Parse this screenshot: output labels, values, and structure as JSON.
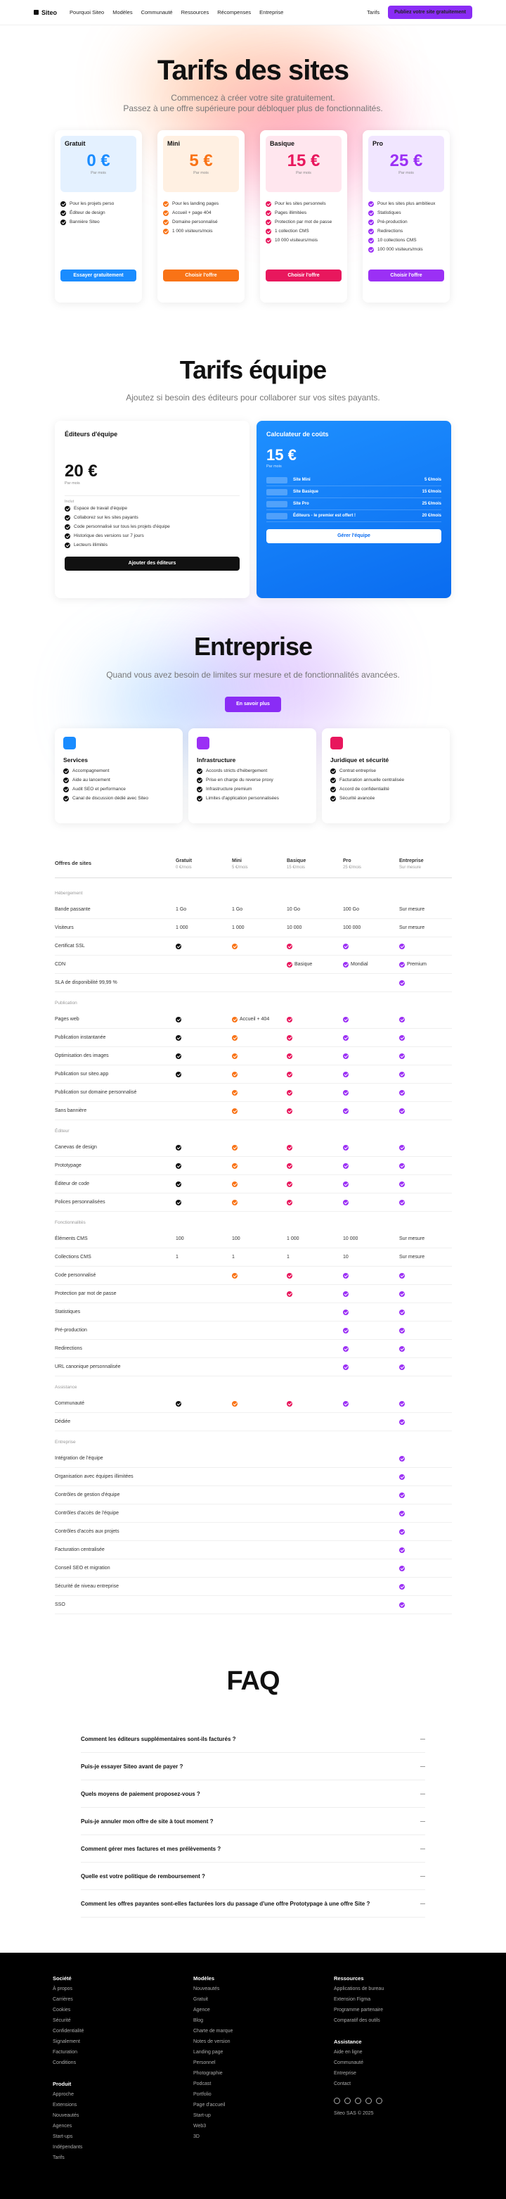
{
  "nav": {
    "logo": "Siteo",
    "links": [
      "Pourquoi Siteo",
      "Modèles",
      "Communauté",
      "Ressources",
      "Récompenses",
      "Entreprise"
    ],
    "pricing": "Tarifs",
    "cta": "Publiez votre site gratuitement"
  },
  "hero": {
    "title": "Tarifs des sites",
    "subtitle": [
      "Commencez à créer votre site gratuitement.",
      "Passez à une offre supérieure pour débloquer plus de fonctionnalités."
    ]
  },
  "plans": [
    {
      "name": "Gratuit",
      "price": "0 €",
      "period": "Par mois",
      "color": "#1a8cff",
      "tint": "#e4f1ff",
      "features": [
        "Pour les projets perso",
        "Éditeur de design",
        "Bannière Siteo"
      ],
      "button": "Essayer gratuitement"
    },
    {
      "name": "Mini",
      "price": "5 €",
      "period": "Par mois",
      "color": "#f97316",
      "tint": "#fff0e2",
      "features": [
        "Pour les landing pages",
        "Accueil + page 404",
        "Domaine personnalisé",
        "1 000 visiteurs/mois"
      ],
      "button": "Choisir l'offre"
    },
    {
      "name": "Basique",
      "price": "15 €",
      "period": "Par mois",
      "color": "#e8175d",
      "tint": "#ffe6ee",
      "features": [
        "Pour les sites personnels",
        "Pages illimitées",
        "Protection par mot de passe",
        "1 collection CMS",
        "10 000 visiteurs/mois"
      ],
      "button": "Choisir l'offre"
    },
    {
      "name": "Pro",
      "price": "25 €",
      "period": "Par mois",
      "color": "#9b30f5",
      "tint": "#f1e6ff",
      "features": [
        "Pour les sites plus ambitieux",
        "Statistiques",
        "Pré-production",
        "Redirections",
        "10 collections CMS",
        "100 000 visiteurs/mois"
      ],
      "button": "Choisir l'offre"
    }
  ],
  "team": {
    "title": "Tarifs équipe",
    "subtitle": "Ajoutez si besoin des éditeurs pour collaborer sur vos sites payants.",
    "editors": {
      "title": "Éditeurs d'équipe",
      "price": "20 €",
      "period": "Par mois",
      "includes": "Inclut",
      "features": [
        "Espace de travail d'équipe",
        "Collaborez sur les sites payants",
        "Code personnalisé sur tous les projets d'équipe",
        "Historique des versions sur 7 jours",
        "Lecteurs illimités"
      ],
      "button": "Ajouter des éditeurs"
    },
    "calculator": {
      "title": "Calculateur de coûts",
      "price": "15 €",
      "period": "Par mois",
      "rows": [
        {
          "label": "Site Mini",
          "price": "5 €/mois"
        },
        {
          "label": "Site Basique",
          "price": "15 €/mois"
        },
        {
          "label": "Site Pro",
          "price": "25 €/mois"
        },
        {
          "label": "Éditeurs - le premier est offert !",
          "price": "20 €/mois"
        }
      ],
      "button": "Gérer l'équipe"
    }
  },
  "enterprise": {
    "title": "Entreprise",
    "subtitle": "Quand vous avez besoin de limites sur mesure et de fonctionnalités avancées.",
    "button": "En savoir plus",
    "cards": [
      {
        "title": "Services",
        "color": "#1a8cff",
        "items": [
          "Accompagnement",
          "Aide au lancement",
          "Audit SEO et performance",
          "Canal de discussion dédié avec Siteo"
        ]
      },
      {
        "title": "Infrastructure",
        "color": "#9b30f5",
        "items": [
          "Accords stricts d'hébergement",
          "Prise en charge du reverse proxy",
          "Infrastructure premium",
          "Limites d'application personnalisées"
        ]
      },
      {
        "title": "Juridique et sécurité",
        "color": "#e8175d",
        "items": [
          "Contrat entreprise",
          "Facturation annuelle centralisée",
          "Accord de confidentialité",
          "Sécurité avancée"
        ]
      }
    ]
  },
  "comparison": {
    "heading": "Offres de sites",
    "columns": [
      {
        "name": "Gratuit",
        "price": "0 €/mois"
      },
      {
        "name": "Mini",
        "price": "5 €/mois"
      },
      {
        "name": "Basique",
        "price": "15 €/mois"
      },
      {
        "name": "Pro",
        "price": "25 €/mois"
      },
      {
        "name": "Entreprise",
        "price": "Sur mesure"
      }
    ],
    "check_colors": [
      "#111111",
      "#f97316",
      "#e8175d",
      "#9b30f5",
      "#9b30f5"
    ],
    "groups": [
      {
        "title": "Hébergement",
        "rows": [
          {
            "label": "Bande passante",
            "cells": [
              "1 Go",
              "1 Go",
              "10 Go",
              "100 Go",
              "Sur mesure"
            ]
          },
          {
            "label": "Visiteurs",
            "cells": [
              "1 000",
              "1 000",
              "10 000",
              "100 000",
              "Sur mesure"
            ]
          },
          {
            "label": "Certificat SSL",
            "cells": [
              true,
              true,
              true,
              true,
              true
            ]
          },
          {
            "label": "CDN",
            "cells": [
              null,
              null,
              "Basique",
              "Mondial",
              "Premium"
            ]
          },
          {
            "label": "SLA de disponibilité 99,99 %",
            "cells": [
              null,
              null,
              null,
              null,
              true
            ]
          }
        ]
      },
      {
        "title": "Publication",
        "rows": [
          {
            "label": "Pages web",
            "cells": [
              true,
              "Accueil + 404",
              true,
              true,
              true
            ]
          },
          {
            "label": "Publication instantanée",
            "cells": [
              true,
              true,
              true,
              true,
              true
            ]
          },
          {
            "label": "Optimisation des images",
            "cells": [
              true,
              true,
              true,
              true,
              true
            ]
          },
          {
            "label": "Publication sur siteo.app",
            "cells": [
              true,
              true,
              true,
              true,
              true
            ]
          },
          {
            "label": "Publication sur domaine personnalisé",
            "cells": [
              null,
              true,
              true,
              true,
              true
            ]
          },
          {
            "label": "Sans bannière",
            "cells": [
              null,
              true,
              true,
              true,
              true
            ]
          }
        ]
      },
      {
        "title": "Éditeur",
        "rows": [
          {
            "label": "Canevas de design",
            "cells": [
              true,
              true,
              true,
              true,
              true
            ]
          },
          {
            "label": "Prototypage",
            "cells": [
              true,
              true,
              true,
              true,
              true
            ]
          },
          {
            "label": "Éditeur de code",
            "cells": [
              true,
              true,
              true,
              true,
              true
            ]
          },
          {
            "label": "Polices personnalisées",
            "cells": [
              true,
              true,
              true,
              true,
              true
            ]
          }
        ]
      },
      {
        "title": "Fonctionnalités",
        "rows": [
          {
            "label": "Éléments CMS",
            "cells": [
              "100",
              "100",
              "1 000",
              "10 000",
              "Sur mesure"
            ]
          },
          {
            "label": "Collections CMS",
            "cells": [
              "1",
              "1",
              "1",
              "10",
              "Sur mesure"
            ]
          },
          {
            "label": "Code personnalisé",
            "cells": [
              null,
              true,
              true,
              true,
              true
            ]
          },
          {
            "label": "Protection par mot de passe",
            "cells": [
              null,
              null,
              true,
              true,
              true
            ]
          },
          {
            "label": "Statistiques",
            "cells": [
              null,
              null,
              null,
              true,
              true
            ]
          },
          {
            "label": "Pré-production",
            "cells": [
              null,
              null,
              null,
              true,
              true
            ]
          },
          {
            "label": "Redirections",
            "cells": [
              null,
              null,
              null,
              true,
              true
            ]
          },
          {
            "label": "URL canonique personnalisée",
            "cells": [
              null,
              null,
              null,
              true,
              true
            ]
          }
        ]
      },
      {
        "title": "Assistance",
        "rows": [
          {
            "label": "Communauté",
            "cells": [
              true,
              true,
              true,
              true,
              true
            ]
          },
          {
            "label": "Dédiée",
            "cells": [
              null,
              null,
              null,
              null,
              true
            ]
          }
        ]
      },
      {
        "title": "Entreprise",
        "rows": [
          {
            "label": "Intégration de l'équipe",
            "cells": [
              null,
              null,
              null,
              null,
              true
            ]
          },
          {
            "label": "Organisation avec équipes illimitées",
            "cells": [
              null,
              null,
              null,
              null,
              true
            ]
          },
          {
            "label": "Contrôles de gestion d'équipe",
            "cells": [
              null,
              null,
              null,
              null,
              true
            ]
          },
          {
            "label": "Contrôles d'accès de l'équipe",
            "cells": [
              null,
              null,
              null,
              null,
              true
            ]
          },
          {
            "label": "Contrôles d'accès aux projets",
            "cells": [
              null,
              null,
              null,
              null,
              true
            ]
          },
          {
            "label": "Facturation centralisée",
            "cells": [
              null,
              null,
              null,
              null,
              true
            ]
          },
          {
            "label": "Conseil SEO et migration",
            "cells": [
              null,
              null,
              null,
              null,
              true
            ]
          },
          {
            "label": "Sécurité de niveau entreprise",
            "cells": [
              null,
              null,
              null,
              null,
              true
            ]
          },
          {
            "label": "SSO",
            "cells": [
              null,
              null,
              null,
              null,
              true
            ]
          }
        ]
      }
    ]
  },
  "faq": {
    "title": "FAQ",
    "questions": [
      "Comment les éditeurs supplémentaires sont-ils facturés ?",
      "Puis-je essayer Siteo avant de payer ?",
      "Quels moyens de paiement proposez-vous ?",
      "Puis-je annuler mon offre de site à tout moment ?",
      "Comment gérer mes factures et mes prélèvements ?",
      "Quelle est votre politique de remboursement ?",
      "Comment les offres payantes sont-elles facturées lors du passage d'une offre Prototypage à une offre Site ?"
    ]
  },
  "footer": {
    "columns": [
      [
        {
          "title": "Société",
          "links": [
            "À propos",
            "Carrières",
            "Cookies",
            "Sécurité",
            "Confidentialité",
            "Signalement",
            "Facturation",
            "Conditions"
          ]
        },
        {
          "title": "Produit",
          "links": [
            "Approche",
            "Extensions",
            "Nouveautés",
            "Agences",
            "Start-ups",
            "Indépendants",
            "Tarifs"
          ]
        }
      ],
      [
        {
          "title": "Modèles",
          "links": [
            "Nouveautés",
            "Gratuit",
            "Agence",
            "Blog",
            "Charte de marque",
            "Notes de version",
            "Landing page",
            "Personnel",
            "Photographie",
            "Podcast",
            "Portfolio",
            "Page d'accueil",
            "Start-up",
            "Web3",
            "3D"
          ]
        }
      ],
      [
        {
          "title": "Ressources",
          "links": [
            "Applications de bureau",
            "Extension Figma",
            "Programme partenaire",
            "Comparatif des outils"
          ]
        },
        {
          "title": "Assistance",
          "links": [
            "Aide en ligne",
            "Communauté",
            "Entreprise",
            "Contact"
          ]
        }
      ]
    ],
    "copyright": "Siteo SAS © 2025"
  }
}
